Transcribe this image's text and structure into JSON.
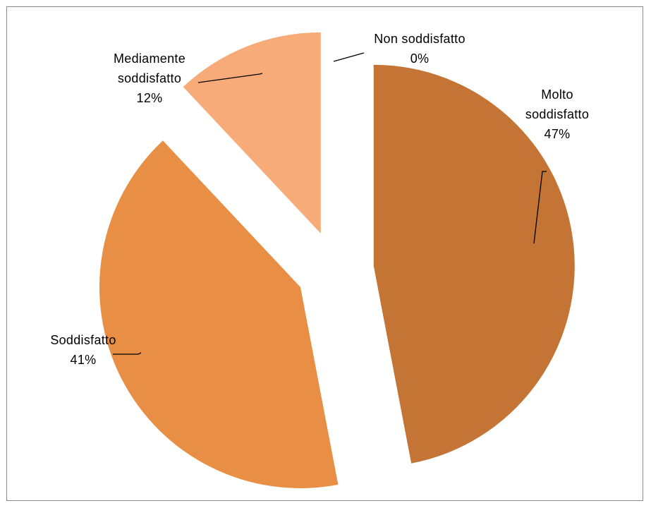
{
  "chart_data": {
    "type": "pie",
    "title": "",
    "slices": [
      {
        "label_lines": [
          "Molto",
          "soddisfatto"
        ],
        "pct_text": "47%",
        "value": 47,
        "color": "#C47535"
      },
      {
        "label_lines": [
          "Soddisfatto"
        ],
        "pct_text": "41%",
        "value": 41,
        "color": "#E98F45"
      },
      {
        "label_lines": [
          "Mediamente",
          "soddisfatto"
        ],
        "pct_text": "12%",
        "value": 12,
        "color": "#F6AB79"
      },
      {
        "label_lines": [
          "Non soddisfatto"
        ],
        "pct_text": "0%",
        "value": 0,
        "color": "#F6C9A8"
      }
    ],
    "exploded": true,
    "legend": "none"
  }
}
